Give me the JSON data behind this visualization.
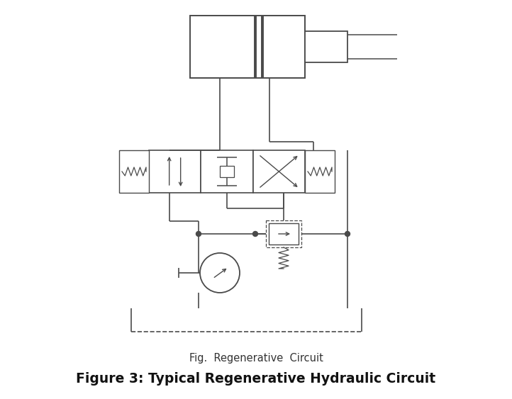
{
  "title_fig": "Fig.  Regenerative  Circuit",
  "title_main": "Figure 3: Typical Regenerative Hydraulic Circuit",
  "bg_color": "#ffffff",
  "line_color": "#4a4a4a",
  "fig_title_fontsize": 10.5,
  "main_title_fontsize": 13.5,
  "figsize": [
    7.22,
    5.63
  ],
  "dpi": 100
}
